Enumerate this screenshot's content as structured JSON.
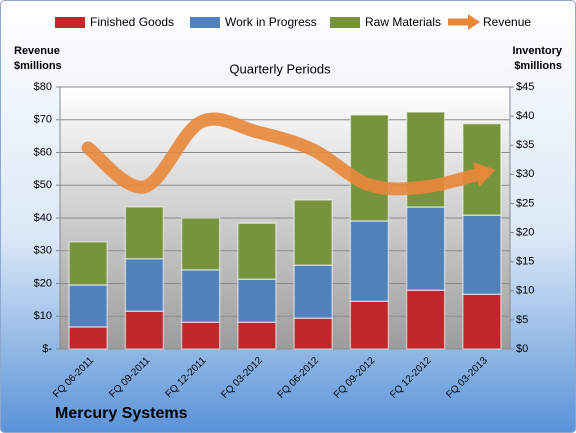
{
  "chart_data": {
    "type": "bar-line",
    "title": "Quarterly Periods",
    "footer": "Mercury Systems",
    "y_label": [
      "Revenue",
      "$millions"
    ],
    "y2_label": [
      "Inventory",
      "$millions"
    ],
    "categories": [
      "FQ 06-2011",
      "FQ 09-2011",
      "FQ 12-2011",
      "FQ 03-2012",
      "FQ 06-2012",
      "FQ 09-2012",
      "FQ 12-2012",
      "FQ 03-2013"
    ],
    "series": [
      {
        "name": "Finished Goods",
        "color": "#c0262a",
        "axis": "y2",
        "type": "bar",
        "values": [
          3.8,
          6.5,
          4.6,
          4.6,
          5.3,
          8.2,
          10.1,
          9.4
        ]
      },
      {
        "name": "Work in Progress",
        "color": "#4f81bd",
        "axis": "y2",
        "type": "bar",
        "values": [
          7.2,
          9.0,
          9.0,
          7.4,
          9.1,
          13.8,
          14.3,
          13.6
        ]
      },
      {
        "name": "Raw Materials",
        "color": "#77933c",
        "axis": "y2",
        "type": "bar",
        "values": [
          7.4,
          8.9,
          8.9,
          9.6,
          11.2,
          18.2,
          16.3,
          15.7
        ]
      },
      {
        "name": "Revenue",
        "color": "#e8873a",
        "axis": "y",
        "type": "line",
        "values": [
          61.4,
          49.5,
          69.3,
          66.3,
          60.8,
          50.1,
          49.5,
          53.7
        ]
      }
    ],
    "ylim": [
      0,
      80
    ],
    "yticks": [
      {
        "value": 0,
        "label": "$-"
      },
      {
        "value": 10,
        "label": "$10"
      },
      {
        "value": 20,
        "label": "$20"
      },
      {
        "value": 30,
        "label": "$30"
      },
      {
        "value": 40,
        "label": "$40"
      },
      {
        "value": 50,
        "label": "$50"
      },
      {
        "value": 60,
        "label": "$60"
      },
      {
        "value": 70,
        "label": "$70"
      },
      {
        "value": 80,
        "label": "$80"
      }
    ],
    "y2lim": [
      0,
      45
    ],
    "y2ticks": [
      {
        "value": 0,
        "label": "$0"
      },
      {
        "value": 5,
        "label": "$5"
      },
      {
        "value": 10,
        "label": "$10"
      },
      {
        "value": 15,
        "label": "$15"
      },
      {
        "value": 20,
        "label": "$20"
      },
      {
        "value": 25,
        "label": "$25"
      },
      {
        "value": 30,
        "label": "$30"
      },
      {
        "value": 35,
        "label": "$35"
      },
      {
        "value": 40,
        "label": "$40"
      },
      {
        "value": 45,
        "label": "$45"
      }
    ],
    "grid": true
  }
}
